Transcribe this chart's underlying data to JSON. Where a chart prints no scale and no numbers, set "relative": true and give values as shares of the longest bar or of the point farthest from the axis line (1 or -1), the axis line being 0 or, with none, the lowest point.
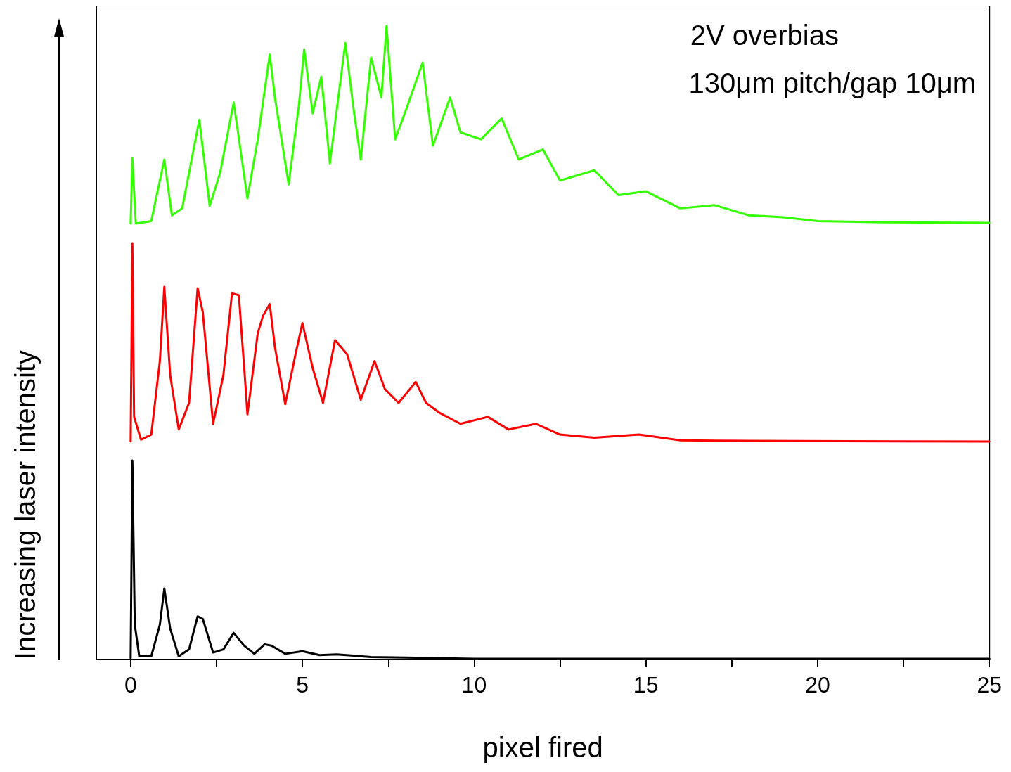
{
  "chart_data": {
    "type": "line",
    "relative": true,
    "xlabel": "pixel fired",
    "ylabel": "Increasing laser intensity",
    "annotations": [
      "2V overbias",
      "130μm pitch/gap 10μm"
    ],
    "xlim": [
      -1,
      25
    ],
    "xticks": [
      0,
      {
        "value": 2.5,
        "label": null
      },
      5,
      {
        "value": 7.5,
        "label": null
      },
      10,
      {
        "value": 12.5,
        "label": null
      },
      15,
      {
        "value": 17.5,
        "label": null
      },
      20,
      {
        "value": 22.5,
        "label": null
      },
      25
    ],
    "grid": false,
    "marker": "none",
    "line_style": "solid",
    "series": [
      {
        "color": "#000000",
        "x": [
          0,
          0.05,
          0.12,
          0.25,
          0.6,
          0.85,
          0.98,
          1.15,
          1.4,
          1.7,
          1.95,
          2.1,
          2.4,
          2.7,
          3.0,
          3.3,
          3.6,
          3.9,
          4.1,
          4.5,
          5.0,
          5.5,
          6.0,
          7,
          8,
          10,
          25
        ],
        "values": [
          0.002,
          0.314,
          0.055,
          0.005,
          0.005,
          0.055,
          0.112,
          0.049,
          0.005,
          0.016,
          0.068,
          0.064,
          0.011,
          0.016,
          0.042,
          0.022,
          0.009,
          0.024,
          0.022,
          0.009,
          0.013,
          0.007,
          0.008,
          0.004,
          0.003,
          0.001,
          0.001
        ]
      },
      {
        "color": "#ff0000",
        "x": [
          0,
          0.05,
          0.1,
          0.3,
          0.6,
          0.85,
          0.98,
          1.15,
          1.4,
          1.7,
          1.95,
          2.1,
          2.4,
          2.7,
          2.95,
          3.15,
          3.35,
          3.4,
          3.7,
          3.85,
          4.05,
          4.2,
          4.5,
          4.8,
          5.0,
          5.3,
          5.6,
          5.95,
          6.3,
          6.7,
          7.1,
          7.4,
          7.8,
          8.3,
          8.6,
          9,
          9.6,
          10.4,
          11,
          11.8,
          12.5,
          13.5,
          14.8,
          16,
          18,
          25
        ],
        "values": [
          0.344,
          0.657,
          0.383,
          0.347,
          0.355,
          0.471,
          0.588,
          0.449,
          0.363,
          0.405,
          0.586,
          0.548,
          0.372,
          0.449,
          0.578,
          0.575,
          0.427,
          0.387,
          0.515,
          0.542,
          0.561,
          0.493,
          0.403,
          0.482,
          0.531,
          0.46,
          0.405,
          0.504,
          0.482,
          0.41,
          0.471,
          0.427,
          0.405,
          0.438,
          0.405,
          0.389,
          0.372,
          0.383,
          0.363,
          0.372,
          0.355,
          0.35,
          0.355,
          0.346,
          0.345,
          0.344
        ]
      },
      {
        "color": "#33ff00",
        "x": [
          0,
          0.05,
          0.15,
          0.6,
          0.98,
          1.2,
          1.5,
          2.0,
          2.3,
          2.6,
          3.0,
          3.4,
          3.7,
          4.05,
          4.2,
          4.6,
          4.9,
          5.05,
          5.3,
          5.55,
          5.8,
          6.25,
          6.5,
          6.7,
          7.0,
          7.3,
          7.45,
          7.7,
          8.0,
          8.5,
          8.8,
          9.3,
          9.6,
          10.2,
          10.8,
          11.3,
          12,
          12.5,
          13.5,
          14.2,
          15,
          16,
          17,
          18,
          19,
          20,
          22,
          25
        ],
        "values": [
          0.688,
          0.791,
          0.688,
          0.692,
          0.789,
          0.701,
          0.712,
          0.852,
          0.716,
          0.767,
          0.879,
          0.728,
          0.821,
          0.955,
          0.887,
          0.75,
          0.876,
          0.963,
          0.862,
          0.92,
          0.783,
          0.973,
          0.865,
          0.789,
          0.95,
          0.887,
          1.0,
          0.821,
          0.865,
          0.942,
          0.811,
          0.887,
          0.832,
          0.821,
          0.854,
          0.789,
          0.805,
          0.756,
          0.772,
          0.733,
          0.739,
          0.712,
          0.717,
          0.701,
          0.698,
          0.692,
          0.69,
          0.689
        ]
      }
    ]
  }
}
